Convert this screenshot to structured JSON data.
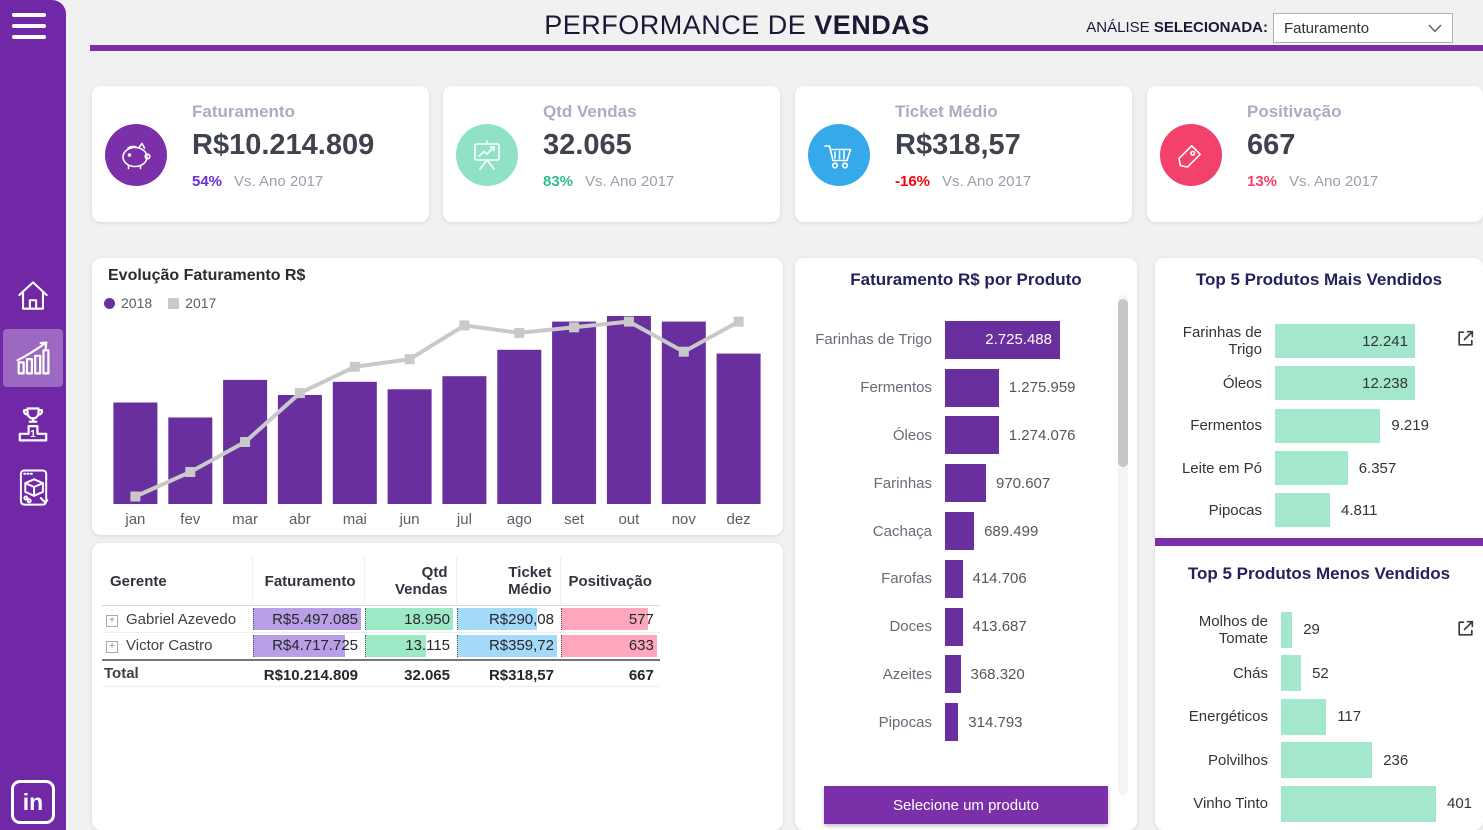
{
  "header": {
    "title_regular": "PERFORMANCE DE",
    "title_bold": "VENDAS",
    "analysis_label_regular": "ANÁLISE",
    "analysis_label_bold": "SELECIONADA:",
    "analysis_value": "Faturamento",
    "accent_color": "#7B2FA8"
  },
  "sidebar": {
    "color": "#7128A7",
    "icons": [
      "menu",
      "home",
      "sales-evolution",
      "ranking",
      "product-explorer",
      "linkedin"
    ],
    "active_icon": "sales-evolution",
    "linkedin_text": "in"
  },
  "kpis": [
    {
      "title": "Faturamento",
      "value": "R$10.214.809",
      "pct": "54%",
      "vs": "Vs. Ano 2017",
      "icon": "piggy-bank",
      "icon_bg": "#7B2FA8",
      "pct_color": "#6C2ED4"
    },
    {
      "title": "Qtd Vendas",
      "value": "32.065",
      "pct": "83%",
      "vs": "Vs. Ano 2017",
      "icon": "presentation-chart",
      "icon_bg": "#8FE3C4",
      "pct_color": "#2EBE8C"
    },
    {
      "title": "Ticket Médio",
      "value": "R$318,57",
      "pct": "-16%",
      "vs": "Vs. Ano 2017",
      "icon": "shopping-cart",
      "icon_bg": "#36A9EA",
      "pct_color": "#FC0204"
    },
    {
      "title": "Positivação",
      "value": "667",
      "pct": "13%",
      "vs": "Vs. Ano 2017",
      "icon": "price-tag",
      "icon_bg": "#F2416B",
      "pct_color": "#F2416B"
    }
  ],
  "chart_data": [
    {
      "id": "evolucao-faturamento",
      "type": "bar",
      "title": "Evolução Faturamento R$",
      "categories": [
        "jan",
        "fev",
        "mar",
        "abr",
        "mai",
        "jun",
        "jul",
        "ago",
        "set",
        "out",
        "nov",
        "dez"
      ],
      "series": [
        {
          "name": "2018",
          "render": "bar",
          "color": "#6A2F9E",
          "values": [
            54,
            46,
            66,
            58,
            65,
            61,
            68,
            82,
            97,
            100,
            97,
            80
          ]
        },
        {
          "name": "2017",
          "render": "line",
          "color": "#C9C9C9",
          "values": [
            4,
            17,
            33,
            59,
            73,
            77,
            95,
            91,
            94,
            97,
            81,
            97
          ]
        }
      ],
      "units": "percent of tallest 2018 bar (no numeric axis shown; estimated from pixels)",
      "grid": false,
      "legend_position": "top-left"
    },
    {
      "id": "faturamento-por-produto",
      "type": "bar",
      "orientation": "horizontal",
      "title": "Faturamento R$ por Produto",
      "categories": [
        "Farinhas de Trigo",
        "Fermentos",
        "Óleos",
        "Farinhas",
        "Cachaça",
        "Farofas",
        "Doces",
        "Azeites",
        "Pipocas"
      ],
      "values": [
        2725488,
        1275959,
        1274076,
        970607,
        689499,
        414706,
        413687,
        368320,
        314793
      ],
      "value_labels": [
        "2.725.488",
        "1.275.959",
        "1.274.076",
        "970.607",
        "689.499",
        "414.706",
        "413.687",
        "368.320",
        "314.793"
      ],
      "bar_color": "#6A2F9E",
      "grid": false
    },
    {
      "id": "top5-mais-vendidos",
      "type": "bar",
      "orientation": "horizontal",
      "title": "Top 5 Produtos Mais Vendidos",
      "categories": [
        "Farinhas de Trigo",
        "Óleos",
        "Fermentos",
        "Leite em Pó",
        "Pipocas"
      ],
      "values": [
        12241,
        12238,
        9219,
        6357,
        4811
      ],
      "value_labels": [
        "12.241",
        "12.238",
        "9.219",
        "6.357",
        "4.811"
      ],
      "bar_color": "#A3E8CC",
      "grid": false
    },
    {
      "id": "top5-menos-vendidos",
      "type": "bar",
      "orientation": "horizontal",
      "title": "Top 5 Produtos Menos Vendidos",
      "categories": [
        "Molhos de Tomate",
        "Chás",
        "Energéticos",
        "Polvilhos",
        "Vinho Tinto"
      ],
      "values": [
        29,
        52,
        117,
        236,
        401
      ],
      "value_labels": [
        "29",
        "52",
        "117",
        "236",
        "401"
      ],
      "bar_color": "#A3E8CC",
      "grid": false
    }
  ],
  "manager_table": {
    "columns": [
      "Gerente",
      "Faturamento",
      "Qtd Vendas",
      "Ticket Médio",
      "Positivação"
    ],
    "rows": [
      {
        "gerente": "Gabriel Azevedo",
        "cells": [
          {
            "text": "R$5.497.085",
            "num": 5497085
          },
          {
            "text": "18.950",
            "num": 18950
          },
          {
            "text": "R$290,08",
            "num": 290.08
          },
          {
            "text": "577",
            "num": 577
          }
        ]
      },
      {
        "gerente": "Victor Castro",
        "cells": [
          {
            "text": "R$4.717.725",
            "num": 4717725
          },
          {
            "text": "13.115",
            "num": 13115
          },
          {
            "text": "R$359,72",
            "num": 359.72
          },
          {
            "text": "633",
            "num": 633
          }
        ]
      }
    ],
    "total": {
      "label": "Total",
      "cells": [
        "R$10.214.809",
        "32.065",
        "R$318,57",
        "667"
      ]
    },
    "bar_colors": [
      "#B9A0E6",
      "#9EE9C5",
      "#A3DAF8",
      "#FFA8BD"
    ]
  },
  "product_panel": {
    "button_label": "Selecione um produto"
  }
}
